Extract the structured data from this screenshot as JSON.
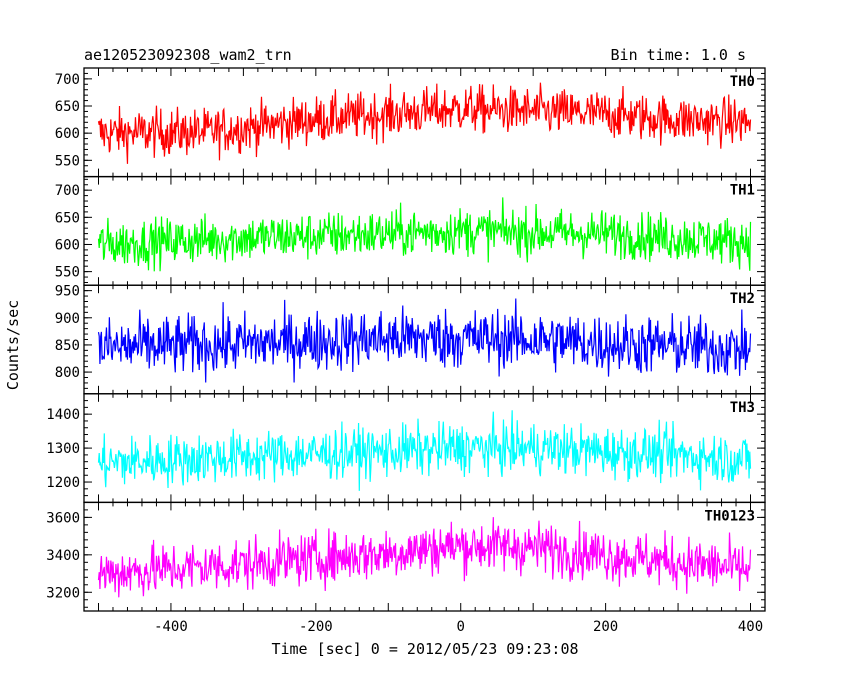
{
  "header": {
    "title": "ae120523092308_wam2_trn",
    "bin_time": "Bin time: 1.0 s"
  },
  "chart_data": {
    "type": "line",
    "xlabel": "Time [sec] 0 = 2012/05/23 09:23:08",
    "ylabel": "Counts/sec",
    "xlim": [
      -520,
      420
    ],
    "x_ticks": [
      -400,
      -200,
      0,
      200,
      400
    ],
    "x_range": [
      -500,
      400
    ],
    "panels": [
      {
        "name": "TH0",
        "color": "#ff0000",
        "ylim": [
          520,
          720
        ],
        "y_ticks": [
          550,
          600,
          650,
          700
        ],
        "trend_x": [
          -500,
          -350,
          -200,
          -50,
          0,
          100,
          200,
          300,
          400
        ],
        "trend_y": [
          600,
          602,
          625,
          640,
          645,
          640,
          635,
          625,
          620
        ],
        "noise": 22
      },
      {
        "name": "TH1",
        "color": "#00ff00",
        "ylim": [
          525,
          725
        ],
        "y_ticks": [
          550,
          600,
          650,
          700
        ],
        "trend_x": [
          -500,
          -300,
          -100,
          0,
          100,
          200,
          300,
          400
        ],
        "trend_y": [
          600,
          612,
          620,
          625,
          622,
          620,
          612,
          605
        ],
        "noise": 22
      },
      {
        "name": "TH2",
        "color": "#0000ff",
        "ylim": [
          760,
          960
        ],
        "y_ticks": [
          800,
          850,
          900,
          950
        ],
        "trend_x": [
          -500,
          -300,
          -100,
          0,
          100,
          200,
          300,
          400
        ],
        "trend_y": [
          845,
          852,
          862,
          862,
          860,
          852,
          848,
          842
        ],
        "noise": 28
      },
      {
        "name": "TH3",
        "color": "#00ffff",
        "ylim": [
          1140,
          1460
        ],
        "y_ticks": [
          1200,
          1300,
          1400
        ],
        "trend_x": [
          -500,
          -300,
          -100,
          0,
          100,
          200,
          300,
          400
        ],
        "trend_y": [
          1255,
          1275,
          1290,
          1300,
          1300,
          1290,
          1280,
          1265
        ],
        "noise": 38
      },
      {
        "name": "TH0123",
        "color": "#ff00ff",
        "ylim": [
          3100,
          3680
        ],
        "y_ticks": [
          3200,
          3400,
          3600
        ],
        "trend_x": [
          -500,
          -300,
          -100,
          0,
          100,
          200,
          300,
          400
        ],
        "trend_y": [
          3300,
          3350,
          3410,
          3450,
          3440,
          3400,
          3360,
          3320
        ],
        "noise": 70
      }
    ]
  }
}
